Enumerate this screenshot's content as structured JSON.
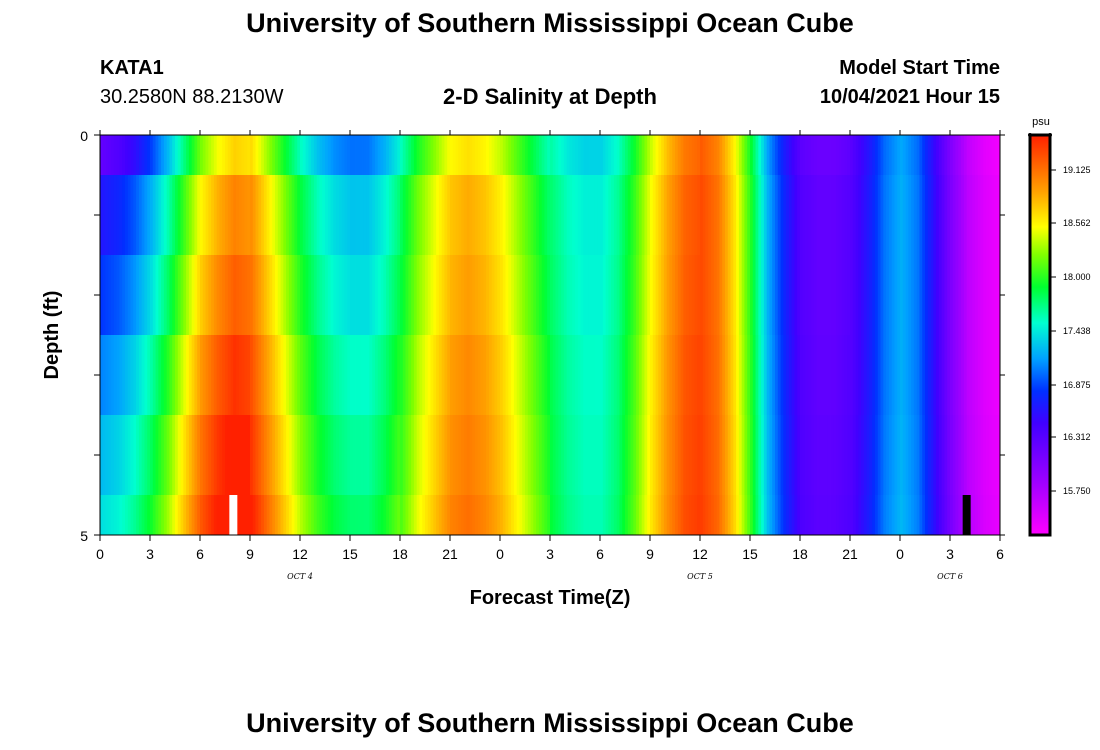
{
  "header": {
    "title_top": "University of Southern Mississippi Ocean Cube",
    "title_bottom": "University of Southern Mississippi Ocean Cube",
    "station": "KATA1",
    "coordinates": "30.2580N  88.2130W",
    "subtitle": "2-D Salinity at Depth",
    "model_start_label": "Model Start Time",
    "model_start_value": "10/04/2021 Hour 15"
  },
  "colorbar": {
    "unit": "psu",
    "labels": [
      "19.125",
      "18.562",
      "18.000",
      "17.438",
      "16.875",
      "16.312",
      "15.750"
    ]
  },
  "chart_data": {
    "type": "heatmap",
    "title": "2-D Salinity at Depth",
    "xlabel": "Forecast Time(Z)",
    "ylabel": "Depth (ft)",
    "x_tick_labels": [
      "0",
      "3",
      "6",
      "9",
      "12",
      "15",
      "18",
      "21",
      "0",
      "3",
      "6",
      "9",
      "12",
      "15",
      "18",
      "21",
      "0",
      "3",
      "6"
    ],
    "date_labels": [
      {
        "label": "OCT 4",
        "hour": 12
      },
      {
        "label": "OCT 5",
        "hour": 36
      },
      {
        "label": "OCT 6",
        "hour": 51
      }
    ],
    "y_tick_labels": [
      "0",
      "5"
    ],
    "ylim": [
      0,
      5
    ],
    "xlim": [
      0,
      54
    ],
    "color_range": [
      15.2,
      19.6
    ],
    "depth_rows": [
      "0-0.5",
      "0.5-1.5",
      "1.5-2.5",
      "2.5-3.5",
      "3.5-4.5",
      "4.5-5"
    ],
    "hourly_salinity_midcolumn": [
      16.8,
      16.9,
      17.1,
      17.4,
      17.8,
      18.3,
      18.8,
      19.1,
      19.3,
      19.2,
      18.8,
      18.4,
      18.0,
      17.7,
      17.5,
      17.4,
      17.4,
      17.6,
      17.9,
      18.3,
      18.6,
      18.9,
      19.0,
      18.9,
      18.7,
      18.4,
      18.1,
      17.8,
      17.6,
      17.5,
      17.5,
      17.7,
      18.1,
      18.6,
      19.0,
      19.3,
      19.4,
      19.2,
      18.7,
      18.0,
      17.2,
      16.7,
      16.3,
      16.2,
      16.2,
      16.3,
      16.6,
      17.0,
      17.2,
      17.0,
      16.5,
      16.0,
      15.6,
      15.4,
      15.3
    ],
    "depth_offsets": [
      [
        -0.6,
        -0.55,
        -0.45,
        -0.3,
        -0.2,
        -0.1
      ],
      [
        -0.2,
        -0.15,
        -0.1,
        -0.05,
        0,
        0
      ],
      [
        0,
        0,
        0,
        0,
        0,
        0
      ],
      [
        0.25,
        0.2,
        0.15,
        0.1,
        0.05,
        0
      ],
      [
        0.45,
        0.35,
        0.25,
        0.15,
        0.1,
        0.05
      ],
      [
        0.6,
        0.5,
        0.35,
        0.2,
        0.15,
        0.1
      ]
    ],
    "markers": [
      {
        "hour": 8,
        "color": "#ffffff"
      },
      {
        "hour": 52,
        "color": "#000000"
      }
    ]
  }
}
